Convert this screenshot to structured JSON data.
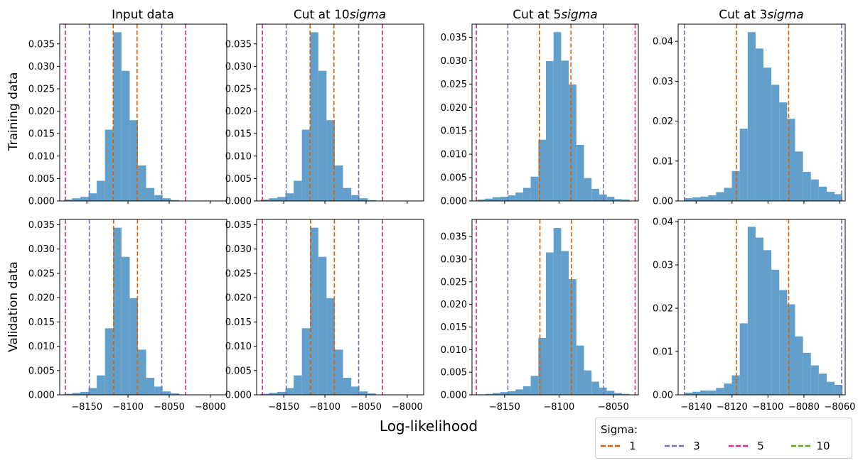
{
  "figure": {
    "xlabel": "Log-likelihood",
    "row_labels": [
      "Training data",
      "Validation data"
    ],
    "column_titles": [
      {
        "prefix": "Input data",
        "italic": ""
      },
      {
        "prefix": "Cut at 10",
        "italic": "sigma"
      },
      {
        "prefix": "Cut at 5",
        "italic": "sigma"
      },
      {
        "prefix": "Cut at 3",
        "italic": "sigma"
      }
    ],
    "legend": {
      "title": "Sigma:",
      "entries": [
        {
          "label": "1",
          "color": "#d95f02"
        },
        {
          "label": "3",
          "color": "#7570b3"
        },
        {
          "label": "5",
          "color": "#e7298a"
        },
        {
          "label": "10",
          "color": "#66a61e"
        }
      ]
    },
    "bar_color": "#62a0cb"
  },
  "chart_data": [
    {
      "type": "bar",
      "panel": "training-input",
      "xlim": [
        -8183,
        -7980
      ],
      "ylim": [
        0,
        0.0394
      ],
      "xticks": [
        -8150,
        -8100,
        -8050,
        -8000
      ],
      "show_xtick_labels": false,
      "yticks": [
        0,
        0.005,
        0.01,
        0.015,
        0.02,
        0.025,
        0.03,
        0.035
      ],
      "ytick_labels": [
        "0.000",
        "0.005",
        "0.010",
        "0.015",
        "0.020",
        "0.025",
        "0.030",
        "0.035"
      ],
      "bin_edges": [
        -8178,
        -8168,
        -8158,
        -8148,
        -8138,
        -8128,
        -8118,
        -8108,
        -8098,
        -8088,
        -8078,
        -8068,
        -8058,
        -8048,
        -8038
      ],
      "values": [
        0.0003,
        0.0006,
        0.0009,
        0.0017,
        0.0045,
        0.0159,
        0.0376,
        0.029,
        0.018,
        0.0079,
        0.0029,
        0.0013,
        0.0006,
        0.0002
      ],
      "sigma_lines": [
        {
          "sigma": "1",
          "x": [
            -8118,
            -8089
          ]
        },
        {
          "sigma": "3",
          "x": [
            -8147,
            -8059
          ]
        },
        {
          "sigma": "5",
          "x": [
            -8176,
            -8030
          ]
        }
      ]
    },
    {
      "type": "bar",
      "panel": "training-cut10",
      "xlim": [
        -8183,
        -7980
      ],
      "ylim": [
        0,
        0.0394
      ],
      "xticks": [
        -8150,
        -8100,
        -8050,
        -8000
      ],
      "show_xtick_labels": false,
      "yticks": [
        0,
        0.005,
        0.01,
        0.015,
        0.02,
        0.025,
        0.03,
        0.035
      ],
      "ytick_labels": [
        "0.000",
        "0.005",
        "0.010",
        "0.015",
        "0.020",
        "0.025",
        "0.030",
        "0.035"
      ],
      "bin_edges": [
        -8178,
        -8168,
        -8158,
        -8148,
        -8138,
        -8128,
        -8118,
        -8108,
        -8098,
        -8088,
        -8078,
        -8068,
        -8058,
        -8048,
        -8038
      ],
      "values": [
        0.0003,
        0.0006,
        0.0009,
        0.0017,
        0.0045,
        0.0159,
        0.0376,
        0.029,
        0.018,
        0.0079,
        0.0029,
        0.0013,
        0.0006,
        0.0002
      ],
      "sigma_lines": [
        {
          "sigma": "1",
          "x": [
            -8118,
            -8089
          ]
        },
        {
          "sigma": "3",
          "x": [
            -8147,
            -8059
          ]
        },
        {
          "sigma": "5",
          "x": [
            -8176,
            -8030
          ]
        }
      ]
    },
    {
      "type": "bar",
      "panel": "training-cut5",
      "xlim": [
        -8180,
        -8027
      ],
      "ylim": [
        0,
        0.0378
      ],
      "xticks": [
        -8150,
        -8100,
        -8050
      ],
      "show_xtick_labels": false,
      "yticks": [
        0,
        0.005,
        0.01,
        0.015,
        0.02,
        0.025,
        0.03,
        0.035
      ],
      "ytick_labels": [
        "0.000",
        "0.005",
        "0.010",
        "0.015",
        "0.020",
        "0.025",
        "0.030",
        "0.035"
      ],
      "bin_edges": [
        -8175,
        -8168,
        -8161,
        -8154,
        -8147,
        -8140,
        -8133,
        -8126,
        -8119,
        -8112,
        -8105,
        -8098,
        -8091,
        -8084,
        -8077,
        -8070,
        -8063,
        -8056,
        -8049,
        -8042,
        -8035
      ],
      "values": [
        0.0003,
        0.0005,
        0.0008,
        0.0009,
        0.0012,
        0.0018,
        0.0028,
        0.0052,
        0.0131,
        0.0299,
        0.0361,
        0.03,
        0.0249,
        0.012,
        0.0049,
        0.0026,
        0.0014,
        0.0009,
        0.0004,
        0.0003
      ],
      "sigma_lines": [
        {
          "sigma": "1",
          "x": [
            -8118,
            -8089
          ]
        },
        {
          "sigma": "3",
          "x": [
            -8147,
            -8059
          ]
        },
        {
          "sigma": "5",
          "x": [
            -8176,
            -8030
          ]
        }
      ]
    },
    {
      "type": "bar",
      "panel": "training-cut3",
      "xlim": [
        -8150,
        -8057
      ],
      "ylim": [
        0,
        0.0443
      ],
      "xticks": [
        -8140,
        -8120,
        -8100,
        -8080,
        -8060
      ],
      "show_xtick_labels": false,
      "yticks": [
        0,
        0.01,
        0.02,
        0.03,
        0.04
      ],
      "ytick_labels": [
        "0.00",
        "0.01",
        "0.02",
        "0.03",
        "0.04"
      ],
      "bin_edges": [
        -8146.5,
        -8142.1,
        -8137.7,
        -8133.3,
        -8128.9,
        -8124.5,
        -8120.1,
        -8115.7,
        -8111.3,
        -8106.9,
        -8102.5,
        -8098.1,
        -8093.7,
        -8089.3,
        -8084.9,
        -8080.5,
        -8076.1,
        -8071.7,
        -8067.3,
        -8062.9,
        -8058.5
      ],
      "values": [
        0.0007,
        0.0009,
        0.0011,
        0.0014,
        0.0022,
        0.0033,
        0.0075,
        0.0181,
        0.0423,
        0.0382,
        0.0334,
        0.0291,
        0.0247,
        0.0206,
        0.0124,
        0.0073,
        0.0054,
        0.0036,
        0.0023,
        0.0017
      ],
      "sigma_lines": [
        {
          "sigma": "1",
          "x": [
            -8117.5,
            -8088.5
          ]
        },
        {
          "sigma": "3",
          "x": [
            -8146.5,
            -8059.0
          ]
        }
      ]
    },
    {
      "type": "bar",
      "panel": "validation-input",
      "xlim": [
        -8183,
        -7980
      ],
      "ylim": [
        0,
        0.0361
      ],
      "xticks": [
        -8150,
        -8100,
        -8050,
        -8000
      ],
      "show_xtick_labels": true,
      "xtick_labels": [
        "−8150",
        "−8100",
        "−8050",
        "−8000"
      ],
      "yticks": [
        0,
        0.005,
        0.01,
        0.015,
        0.02,
        0.025,
        0.03,
        0.035
      ],
      "ytick_labels": [
        "0.000",
        "0.005",
        "0.010",
        "0.015",
        "0.020",
        "0.025",
        "0.030",
        "0.035"
      ],
      "bin_edges": [
        -8178,
        -8168,
        -8158,
        -8148,
        -8138,
        -8128,
        -8118,
        -8108,
        -8098,
        -8088,
        -8078,
        -8068,
        -8058,
        -8048,
        -8038
      ],
      "values": [
        0.0002,
        0.0004,
        0.0006,
        0.0014,
        0.004,
        0.0137,
        0.0344,
        0.0284,
        0.0199,
        0.0093,
        0.0035,
        0.0017,
        0.0007,
        0.0003
      ],
      "sigma_lines": [
        {
          "sigma": "1",
          "x": [
            -8117.5,
            -8088.5
          ]
        },
        {
          "sigma": "3",
          "x": [
            -8147,
            -8059
          ]
        },
        {
          "sigma": "5",
          "x": [
            -8176,
            -8030
          ]
        }
      ]
    },
    {
      "type": "bar",
      "panel": "validation-cut10",
      "xlim": [
        -8183,
        -7980
      ],
      "ylim": [
        0,
        0.0361
      ],
      "xticks": [
        -8150,
        -8100,
        -8050,
        -8000
      ],
      "show_xtick_labels": true,
      "xtick_labels": [
        "−8150",
        "−8100",
        "−8050",
        "−8000"
      ],
      "yticks": [
        0,
        0.005,
        0.01,
        0.015,
        0.02,
        0.025,
        0.03,
        0.035
      ],
      "ytick_labels": [
        "0.000",
        "0.005",
        "0.010",
        "0.015",
        "0.020",
        "0.025",
        "0.030",
        "0.035"
      ],
      "bin_edges": [
        -8178,
        -8168,
        -8158,
        -8148,
        -8138,
        -8128,
        -8118,
        -8108,
        -8098,
        -8088,
        -8078,
        -8068,
        -8058,
        -8048,
        -8038
      ],
      "values": [
        0.0002,
        0.0004,
        0.0006,
        0.0014,
        0.004,
        0.0137,
        0.0344,
        0.0284,
        0.0199,
        0.0093,
        0.0035,
        0.0017,
        0.0007,
        0.0003
      ],
      "sigma_lines": [
        {
          "sigma": "1",
          "x": [
            -8117.5,
            -8088.5
          ]
        },
        {
          "sigma": "3",
          "x": [
            -8147,
            -8059
          ]
        },
        {
          "sigma": "5",
          "x": [
            -8176,
            -8030
          ]
        }
      ]
    },
    {
      "type": "bar",
      "panel": "validation-cut5",
      "xlim": [
        -8180,
        -8027
      ],
      "ylim": [
        0,
        0.0388
      ],
      "xticks": [
        -8150,
        -8100,
        -8050
      ],
      "show_xtick_labels": true,
      "xtick_labels": [
        "−8150",
        "−8100",
        "−8050"
      ],
      "yticks": [
        0,
        0.005,
        0.01,
        0.015,
        0.02,
        0.025,
        0.03,
        0.035
      ],
      "ytick_labels": [
        "0.000",
        "0.005",
        "0.010",
        "0.015",
        "0.020",
        "0.025",
        "0.030",
        "0.035"
      ],
      "bin_edges": [
        -8175,
        -8168,
        -8161,
        -8154,
        -8147,
        -8140,
        -8133,
        -8126,
        -8119,
        -8112,
        -8105,
        -8098,
        -8091,
        -8084,
        -8077,
        -8070,
        -8063,
        -8056,
        -8049,
        -8042,
        -8035
      ],
      "values": [
        0.0001,
        0.0002,
        0.0004,
        0.0006,
        0.0008,
        0.0012,
        0.0019,
        0.0042,
        0.0126,
        0.0315,
        0.0369,
        0.0318,
        0.0256,
        0.0109,
        0.0054,
        0.0029,
        0.0016,
        0.0009,
        0.0004,
        0.0002
      ],
      "sigma_lines": [
        {
          "sigma": "1",
          "x": [
            -8117.5,
            -8088.5
          ]
        },
        {
          "sigma": "3",
          "x": [
            -8147,
            -8059
          ]
        },
        {
          "sigma": "5",
          "x": [
            -8176,
            -8030
          ]
        }
      ]
    },
    {
      "type": "bar",
      "panel": "validation-cut3",
      "xlim": [
        -8150,
        -8057
      ],
      "ylim": [
        0,
        0.0405
      ],
      "xticks": [
        -8140,
        -8120,
        -8100,
        -8080,
        -8060
      ],
      "show_xtick_labels": true,
      "xtick_labels": [
        "−8140",
        "−8120",
        "−8100",
        "−8080",
        "−8060"
      ],
      "yticks": [
        0,
        0.01,
        0.02,
        0.03,
        0.04
      ],
      "ytick_labels": [
        "0.00",
        "0.01",
        "0.02",
        "0.03",
        "0.04"
      ],
      "bin_edges": [
        -8146.5,
        -8142.1,
        -8137.7,
        -8133.3,
        -8128.9,
        -8124.5,
        -8120.1,
        -8115.7,
        -8111.3,
        -8106.9,
        -8102.5,
        -8098.1,
        -8093.7,
        -8089.3,
        -8084.9,
        -8080.5,
        -8076.1,
        -8071.7,
        -8067.3,
        -8062.9,
        -8058.5
      ],
      "values": [
        0.0005,
        0.0007,
        0.001,
        0.001,
        0.0016,
        0.0026,
        0.0045,
        0.0165,
        0.0388,
        0.0363,
        0.0334,
        0.0289,
        0.0242,
        0.0209,
        0.0135,
        0.0097,
        0.0068,
        0.0049,
        0.003,
        0.0023
      ],
      "sigma_lines": [
        {
          "sigma": "1",
          "x": [
            -8117.5,
            -8088.5
          ]
        },
        {
          "sigma": "3",
          "x": [
            -8146.5,
            -8059.0
          ]
        }
      ]
    }
  ]
}
